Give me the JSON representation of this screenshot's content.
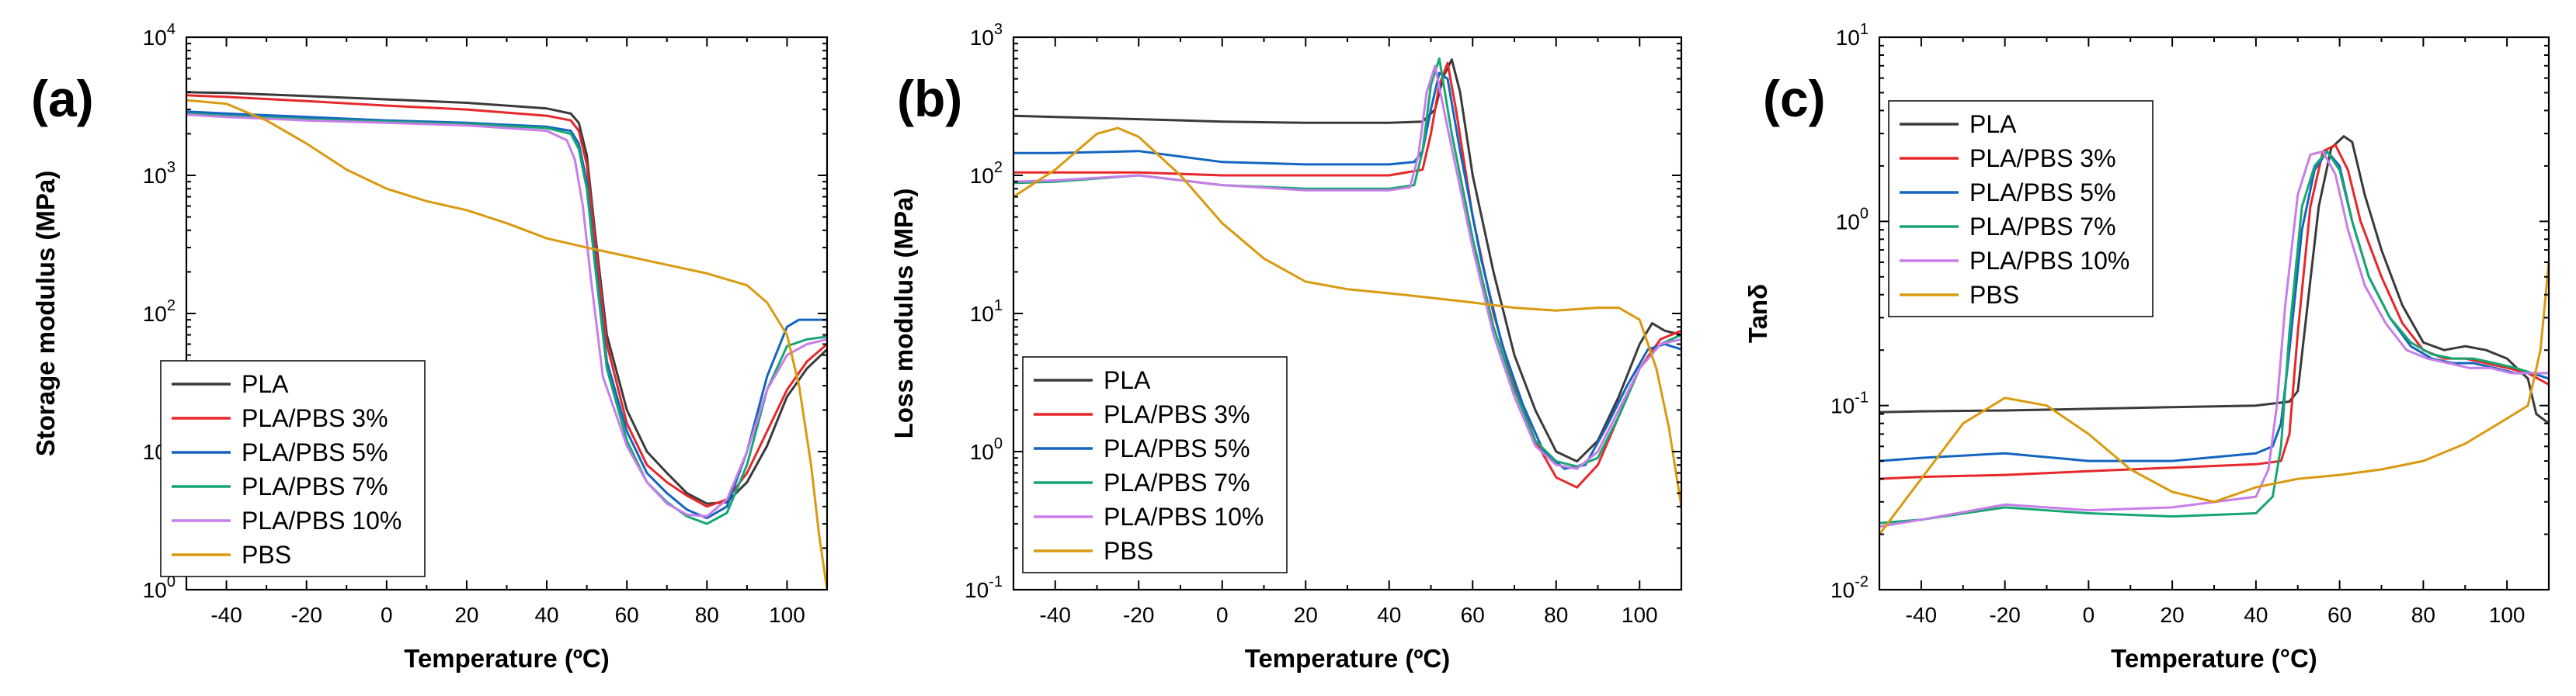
{
  "colors": {
    "PLA": "#3a3a3a",
    "PLA/PBS 3%": "#e8272a",
    "PLA/PBS 5%": "#1565c0",
    "PLA/PBS 7%": "#17a673",
    "PLA/PBS 10%": "#c77ee8",
    "PBS": "#d99a10"
  },
  "chart_data": [
    {
      "panel_label": "(a)",
      "type": "line",
      "yscale": "log",
      "xlabel": "Temperature (ºC)",
      "ylabel": "Storage modulus (MPa)",
      "xlim": [
        -50,
        110
      ],
      "ylim": [
        1,
        10000
      ],
      "xticks": [
        -40,
        -20,
        0,
        20,
        40,
        60,
        80,
        100
      ],
      "xtick_labels": [
        "-40",
        "-20",
        "0",
        "20",
        "40",
        "60",
        "80",
        "100"
      ],
      "yticks": [
        {
          "value": 1,
          "base": "10",
          "exp": "0"
        },
        {
          "value": 10,
          "base": "10",
          "exp": "1"
        },
        {
          "value": 100,
          "base": "10",
          "exp": "2"
        },
        {
          "value": 1000,
          "base": "10",
          "exp": "3"
        },
        {
          "value": 10000,
          "base": "10",
          "exp": "4"
        }
      ],
      "legend_position": "bottom-left",
      "series": [
        {
          "name": "PLA",
          "x": [
            -50,
            -40,
            -20,
            0,
            20,
            40,
            46,
            48,
            50,
            52,
            55,
            60,
            65,
            70,
            75,
            80,
            85,
            90,
            95,
            100,
            105,
            110
          ],
          "y": [
            4000,
            3950,
            3750,
            3550,
            3350,
            3050,
            2800,
            2400,
            1400,
            400,
            70,
            20,
            10,
            7,
            5,
            4.2,
            4.3,
            6,
            11,
            25,
            40,
            55
          ]
        },
        {
          "name": "PLA/PBS 3%",
          "x": [
            -50,
            -40,
            -20,
            0,
            20,
            40,
            46,
            48,
            50,
            52,
            55,
            60,
            65,
            70,
            75,
            80,
            85,
            90,
            95,
            100,
            105,
            110
          ],
          "y": [
            3800,
            3700,
            3450,
            3200,
            3000,
            2700,
            2500,
            2100,
            1200,
            350,
            60,
            16,
            8,
            6,
            4.8,
            4.0,
            4.5,
            7,
            14,
            28,
            45,
            60
          ]
        },
        {
          "name": "PLA/PBS 5%",
          "x": [
            -50,
            -40,
            -20,
            0,
            20,
            40,
            46,
            48,
            50,
            52,
            55,
            60,
            65,
            70,
            75,
            80,
            85,
            90,
            95,
            100,
            103,
            106,
            110
          ],
          "y": [
            2900,
            2800,
            2650,
            2500,
            2400,
            2250,
            2100,
            1700,
            900,
            260,
            45,
            14,
            7,
            5,
            3.8,
            3.3,
            4.0,
            10,
            35,
            80,
            90,
            90,
            90
          ]
        },
        {
          "name": "PLA/PBS 7%",
          "x": [
            -50,
            -40,
            -20,
            0,
            20,
            40,
            46,
            48,
            50,
            52,
            55,
            60,
            65,
            70,
            75,
            80,
            85,
            90,
            95,
            100,
            105,
            110
          ],
          "y": [
            2800,
            2700,
            2550,
            2450,
            2350,
            2200,
            2000,
            1550,
            800,
            230,
            40,
            12,
            6,
            4.3,
            3.4,
            3.0,
            3.6,
            8,
            28,
            58,
            65,
            68
          ]
        },
        {
          "name": "PLA/PBS 10%",
          "x": [
            -50,
            -40,
            -20,
            0,
            20,
            40,
            45,
            47,
            49,
            51,
            54,
            60,
            65,
            70,
            75,
            80,
            85,
            90,
            95,
            100,
            105,
            110
          ],
          "y": [
            2750,
            2650,
            2500,
            2400,
            2300,
            2100,
            1800,
            1300,
            600,
            180,
            35,
            11,
            6,
            4.2,
            3.5,
            3.4,
            4.5,
            10,
            28,
            50,
            60,
            65
          ]
        },
        {
          "name": "PBS",
          "x": [
            -50,
            -40,
            -30,
            -20,
            -10,
            0,
            10,
            20,
            30,
            40,
            50,
            60,
            70,
            80,
            90,
            95,
            100,
            103,
            106,
            108,
            110
          ],
          "y": [
            3500,
            3300,
            2500,
            1700,
            1100,
            800,
            650,
            560,
            450,
            350,
            300,
            260,
            225,
            195,
            160,
            120,
            70,
            30,
            8,
            2.5,
            1.0
          ]
        }
      ]
    },
    {
      "panel_label": "(b)",
      "type": "line",
      "yscale": "log",
      "xlabel": "Temperature (ºC)",
      "ylabel": "Loss modulus (MPa)",
      "xlim": [
        -50,
        110
      ],
      "ylim": [
        0.1,
        1000
      ],
      "xticks": [
        -40,
        -20,
        0,
        20,
        40,
        60,
        80,
        100
      ],
      "xtick_labels": [
        "-40",
        "-20",
        "0",
        "20",
        "40",
        "60",
        "80",
        "100"
      ],
      "yticks": [
        {
          "value": 0.1,
          "base": "10",
          "exp": "-1"
        },
        {
          "value": 1,
          "base": "10",
          "exp": "0"
        },
        {
          "value": 10,
          "base": "10",
          "exp": "1"
        },
        {
          "value": 100,
          "base": "10",
          "exp": "2"
        },
        {
          "value": 1000,
          "base": "10",
          "exp": "3"
        }
      ],
      "legend_position": "bottom-left",
      "series": [
        {
          "name": "PLA",
          "x": [
            -50,
            -40,
            -20,
            0,
            20,
            40,
            48,
            51,
            53,
            55,
            57,
            60,
            65,
            70,
            75,
            80,
            85,
            90,
            95,
            100,
            103,
            106,
            110
          ],
          "y": [
            270,
            265,
            255,
            245,
            240,
            240,
            245,
            300,
            520,
            690,
            400,
            100,
            20,
            5,
            2.0,
            1.0,
            0.85,
            1.2,
            2.5,
            6,
            8.5,
            7.5,
            7.0
          ]
        },
        {
          "name": "PLA/PBS 3%",
          "x": [
            -50,
            -40,
            -20,
            0,
            20,
            40,
            48,
            50,
            52,
            54,
            56,
            60,
            65,
            70,
            75,
            80,
            85,
            90,
            95,
            100,
            105,
            110
          ],
          "y": [
            105,
            105,
            105,
            100,
            100,
            100,
            110,
            200,
            450,
            650,
            300,
            50,
            10,
            3.0,
            1.2,
            0.65,
            0.55,
            0.8,
            1.8,
            4,
            6.5,
            7.5
          ]
        },
        {
          "name": "PLA/PBS 5%",
          "x": [
            -50,
            -40,
            -20,
            0,
            20,
            40,
            46,
            48,
            50,
            52,
            54,
            57,
            62,
            67,
            72,
            77,
            82,
            87,
            92,
            97,
            102,
            106,
            110
          ],
          "y": [
            145,
            145,
            150,
            125,
            120,
            120,
            125,
            150,
            300,
            550,
            500,
            150,
            25,
            6,
            2.2,
            1.0,
            0.75,
            0.8,
            1.5,
            3,
            5.5,
            6,
            5.5
          ]
        },
        {
          "name": "PLA/PBS 7%",
          "x": [
            -50,
            -40,
            -20,
            0,
            20,
            40,
            46,
            48,
            50,
            52,
            55,
            60,
            65,
            70,
            75,
            80,
            85,
            90,
            95,
            100,
            105,
            110
          ],
          "y": [
            88,
            90,
            100,
            85,
            80,
            80,
            85,
            150,
            450,
            700,
            200,
            35,
            8,
            2.8,
            1.2,
            0.85,
            0.78,
            0.9,
            1.8,
            4,
            6,
            7
          ]
        },
        {
          "name": "PLA/PBS 10%",
          "x": [
            -50,
            -40,
            -20,
            0,
            20,
            40,
            45,
            47,
            49,
            51,
            54,
            60,
            65,
            70,
            75,
            80,
            85,
            90,
            95,
            100,
            105,
            110
          ],
          "y": [
            90,
            92,
            100,
            85,
            78,
            78,
            82,
            140,
            400,
            620,
            220,
            30,
            7,
            2.5,
            1.1,
            0.8,
            0.75,
            1.0,
            2.0,
            4,
            6,
            6.5
          ]
        },
        {
          "name": "PBS",
          "x": [
            -50,
            -40,
            -30,
            -25,
            -20,
            -10,
            0,
            10,
            20,
            30,
            40,
            50,
            60,
            70,
            80,
            90,
            95,
            100,
            104,
            107,
            110
          ],
          "y": [
            70,
            110,
            200,
            220,
            190,
            100,
            45,
            25,
            17,
            15,
            14,
            13,
            12,
            11,
            10.5,
            11,
            11,
            9,
            4,
            1.5,
            0.4
          ]
        }
      ]
    },
    {
      "panel_label": "(c)",
      "type": "line",
      "yscale": "log",
      "xlabel": "Temperature (°C)",
      "ylabel": "Tanδ",
      "xlim": [
        -50,
        110
      ],
      "ylim": [
        0.01,
        10
      ],
      "xticks": [
        -40,
        -20,
        0,
        20,
        40,
        60,
        80,
        100
      ],
      "xtick_labels": [
        "-40",
        "-20",
        "0",
        "20",
        "40",
        "60",
        "80",
        "100"
      ],
      "yticks": [
        {
          "value": 0.01,
          "base": "10",
          "exp": "-2"
        },
        {
          "value": 0.1,
          "base": "10",
          "exp": "-1"
        },
        {
          "value": 1,
          "base": "10",
          "exp": "0"
        },
        {
          "value": 10,
          "base": "10",
          "exp": "1"
        }
      ],
      "legend_position": "top-left",
      "series": [
        {
          "name": "PLA",
          "x": [
            -50,
            -40,
            -20,
            0,
            20,
            40,
            48,
            50,
            52,
            55,
            58,
            61,
            63,
            66,
            70,
            75,
            80,
            85,
            90,
            95,
            100,
            105,
            107,
            110
          ],
          "y": [
            0.092,
            0.093,
            0.094,
            0.096,
            0.098,
            0.1,
            0.105,
            0.12,
            0.3,
            1.2,
            2.5,
            2.9,
            2.7,
            1.4,
            0.7,
            0.35,
            0.22,
            0.2,
            0.21,
            0.2,
            0.18,
            0.14,
            0.09,
            0.08
          ]
        },
        {
          "name": "PLA/PBS 3%",
          "x": [
            -50,
            -40,
            -20,
            0,
            20,
            40,
            46,
            48,
            50,
            53,
            56,
            59,
            62,
            65,
            70,
            75,
            80,
            85,
            90,
            95,
            100,
            105,
            110
          ],
          "y": [
            0.04,
            0.041,
            0.042,
            0.044,
            0.046,
            0.048,
            0.05,
            0.07,
            0.25,
            1.2,
            2.4,
            2.6,
            1.9,
            1.0,
            0.5,
            0.28,
            0.2,
            0.18,
            0.18,
            0.17,
            0.16,
            0.15,
            0.13
          ]
        },
        {
          "name": "PLA/PBS 5%",
          "x": [
            -50,
            -40,
            -20,
            0,
            20,
            40,
            44,
            46,
            48,
            51,
            54,
            57,
            60,
            63,
            67,
            72,
            77,
            82,
            87,
            92,
            97,
            102,
            106,
            110
          ],
          "y": [
            0.05,
            0.052,
            0.055,
            0.05,
            0.05,
            0.055,
            0.06,
            0.08,
            0.2,
            0.9,
            1.9,
            2.4,
            2.0,
            1.0,
            0.5,
            0.3,
            0.21,
            0.18,
            0.17,
            0.17,
            0.16,
            0.15,
            0.15,
            0.14
          ]
        },
        {
          "name": "PLA/PBS 7%",
          "x": [
            -50,
            -40,
            -20,
            0,
            20,
            40,
            44,
            46,
            48,
            51,
            54,
            57,
            60,
            63,
            67,
            72,
            77,
            82,
            87,
            92,
            97,
            102,
            106,
            110
          ],
          "y": [
            0.023,
            0.024,
            0.028,
            0.026,
            0.025,
            0.026,
            0.032,
            0.06,
            0.25,
            1.2,
            2.0,
            2.4,
            1.9,
            1.0,
            0.5,
            0.3,
            0.22,
            0.19,
            0.18,
            0.18,
            0.17,
            0.16,
            0.15,
            0.15
          ]
        },
        {
          "name": "PLA/PBS 10%",
          "x": [
            -50,
            -40,
            -20,
            0,
            20,
            40,
            43,
            45,
            47,
            50,
            53,
            56,
            59,
            62,
            66,
            71,
            76,
            81,
            86,
            91,
            96,
            101,
            106,
            110
          ],
          "y": [
            0.022,
            0.024,
            0.029,
            0.027,
            0.028,
            0.032,
            0.045,
            0.1,
            0.35,
            1.4,
            2.3,
            2.4,
            1.8,
            0.9,
            0.45,
            0.28,
            0.2,
            0.18,
            0.17,
            0.16,
            0.16,
            0.15,
            0.15,
            0.15
          ]
        },
        {
          "name": "PBS",
          "x": [
            -50,
            -40,
            -30,
            -20,
            -10,
            0,
            10,
            20,
            30,
            40,
            50,
            60,
            70,
            80,
            90,
            100,
            105,
            108,
            110
          ],
          "y": [
            0.02,
            0.04,
            0.08,
            0.11,
            0.1,
            0.07,
            0.045,
            0.034,
            0.03,
            0.036,
            0.04,
            0.042,
            0.045,
            0.05,
            0.062,
            0.085,
            0.1,
            0.2,
            0.6
          ]
        }
      ]
    }
  ]
}
